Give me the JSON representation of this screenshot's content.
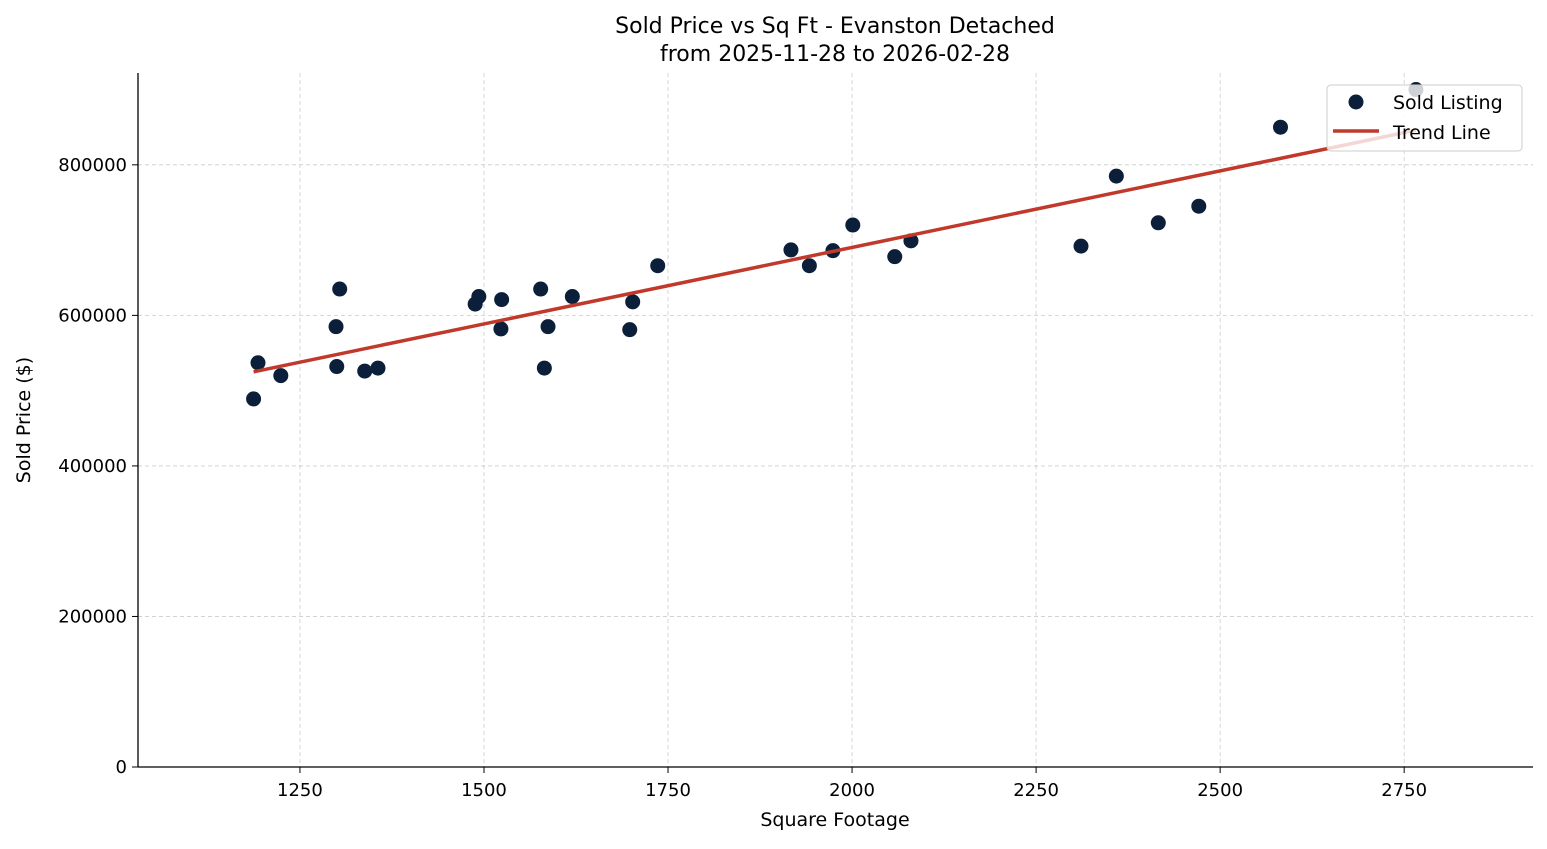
{
  "chart_data": {
    "type": "scatter",
    "title": "Sold Price vs Sq Ft - Evanston Detached",
    "subtitle": "from 2025-11-28 to 2026-02-28",
    "xlabel": "Square Footage",
    "ylabel": "Sold Price ($)",
    "xlim": [
      1030,
      2925
    ],
    "ylim": [
      0,
      922000
    ],
    "xticks": [
      1250,
      1500,
      1750,
      2000,
      2250,
      2500,
      2750
    ],
    "yticks": [
      0,
      200000,
      400000,
      600000,
      800000
    ],
    "grid": true,
    "legend_placement": "top-right",
    "colors": {
      "points": "#0b1f3a",
      "trend": "#c0392b"
    },
    "series": [
      {
        "name": "Sold Listing",
        "type": "scatter",
        "points": [
          [
            1187,
            489000
          ],
          [
            1193,
            537000
          ],
          [
            1224,
            520000
          ],
          [
            1299,
            585000
          ],
          [
            1300,
            532000
          ],
          [
            1304,
            635000
          ],
          [
            1338,
            526000
          ],
          [
            1356,
            530000
          ],
          [
            1488,
            615000
          ],
          [
            1493,
            625000
          ],
          [
            1524,
            621000
          ],
          [
            1523,
            582000
          ],
          [
            1577,
            635000
          ],
          [
            1582,
            530000
          ],
          [
            1587,
            585000
          ],
          [
            1620,
            625000
          ],
          [
            1698,
            581000
          ],
          [
            1702,
            618000
          ],
          [
            1736,
            666000
          ],
          [
            1917,
            687000
          ],
          [
            1942,
            666000
          ],
          [
            1974,
            686000
          ],
          [
            2001,
            720000
          ],
          [
            2058,
            678000
          ],
          [
            2080,
            699000
          ],
          [
            2311,
            692000
          ],
          [
            2359,
            785000
          ],
          [
            2416,
            723000
          ],
          [
            2471,
            745000
          ],
          [
            2582,
            850000
          ],
          [
            2766,
            900000
          ]
        ]
      },
      {
        "name": "Trend Line",
        "type": "line",
        "points": [
          [
            1187,
            525000
          ],
          [
            2766,
            846000
          ]
        ]
      }
    ]
  }
}
